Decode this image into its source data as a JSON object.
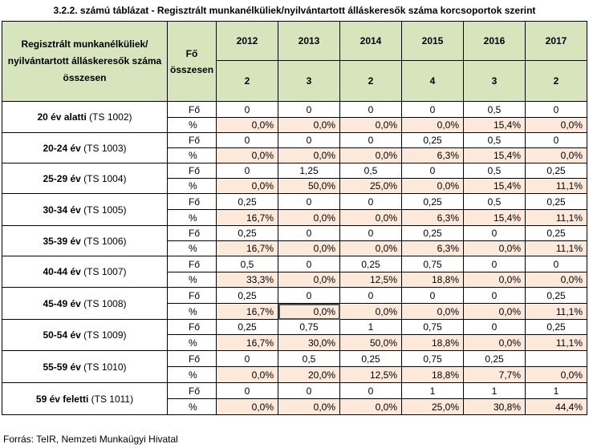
{
  "title": "3.2.2. számú táblázat - Regisztrált munkanélküliek/nyilvántartott álláskeresők száma korcsoportok szerint",
  "header": {
    "category_label": "Regisztrált munkanélküliek/ nyilvántartott álláskeresők száma összesen",
    "unit_label": "Fő összesen",
    "years": [
      "2012",
      "2013",
      "2014",
      "2015",
      "2016",
      "2017"
    ],
    "totals": [
      "2",
      "3",
      "2",
      "4",
      "3",
      "2"
    ]
  },
  "rows": [
    {
      "age": "20 év alatti",
      "code": "(TS 1002)",
      "unit_fo": "Fő",
      "unit_pct": "%",
      "fo": [
        "0",
        "0",
        "0",
        "0",
        "0,5",
        "0"
      ],
      "pct": [
        "0,0%",
        "0,0%",
        "0,0%",
        "0,0%",
        "15,4%",
        "0,0%"
      ]
    },
    {
      "age": "20-24 év",
      "code": "(TS 1003)",
      "unit_fo": "Fő",
      "unit_pct": "%",
      "fo": [
        "0",
        "0",
        "0",
        "0,25",
        "0,5",
        "0"
      ],
      "pct": [
        "0,0%",
        "0,0%",
        "0,0%",
        "6,3%",
        "15,4%",
        "0,0%"
      ]
    },
    {
      "age": "25-29 év",
      "code": "(TS 1004)",
      "unit_fo": "Fő",
      "unit_pct": "%",
      "fo": [
        "0",
        "1,25",
        "0,5",
        "0",
        "0,5",
        "0,25"
      ],
      "pct": [
        "0,0%",
        "50,0%",
        "25,0%",
        "0,0%",
        "15,4%",
        "11,1%"
      ]
    },
    {
      "age": "30-34 év",
      "code": "(TS 1005)",
      "unit_fo": "Fő",
      "unit_pct": "%",
      "fo": [
        "0,25",
        "0",
        "0",
        "0,25",
        "0,5",
        "0,25"
      ],
      "pct": [
        "16,7%",
        "0,0%",
        "0,0%",
        "6,3%",
        "15,4%",
        "11,1%"
      ]
    },
    {
      "age": "35-39 év",
      "code": "(TS 1006)",
      "unit_fo": "Fő",
      "unit_pct": "%",
      "fo": [
        "0,25",
        "0",
        "0",
        "0,25",
        "0",
        "0,25"
      ],
      "pct": [
        "16,7%",
        "0,0%",
        "0,0%",
        "6,3%",
        "0,0%",
        "11,1%"
      ]
    },
    {
      "age": "40-44 év",
      "code": "(TS 1007)",
      "unit_fo": "Fő",
      "unit_pct": "%",
      "fo": [
        "0,5",
        "0",
        "0,25",
        "0,75",
        "0",
        "0"
      ],
      "pct": [
        "33,3%",
        "0,0%",
        "12,5%",
        "18,8%",
        "0,0%",
        "0,0%"
      ]
    },
    {
      "age": "45-49 év",
      "code": "(TS 1008)",
      "unit_fo": "Fő",
      "unit_pct": "%",
      "fo": [
        "0,25",
        "0",
        "0",
        "0",
        "0",
        "0,25"
      ],
      "pct": [
        "16,7%",
        "0,0%",
        "0,0%",
        "0,0%",
        "0,0%",
        "11,1%"
      ]
    },
    {
      "age": "50-54 év",
      "code": "(TS 1009)",
      "unit_fo": "Fő",
      "unit_pct": "%",
      "fo": [
        "0,25",
        "0,75",
        "1",
        "0,75",
        "0",
        "0,25"
      ],
      "pct": [
        "16,7%",
        "30,0%",
        "50,0%",
        "18,8%",
        "0,0%",
        "11,1%"
      ]
    },
    {
      "age": "55-59 év",
      "code": "(TS 1010)",
      "unit_fo": "Fő",
      "unit_pct": "%",
      "fo": [
        "0",
        "0,5",
        "0,25",
        "0,75",
        "0,25",
        ""
      ],
      "pct": [
        "0,0%",
        "20,0%",
        "12,5%",
        "18,8%",
        "7,7%",
        "0,0%"
      ]
    },
    {
      "age": "59 év feletti",
      "code": "(TS 1011)",
      "unit_fo": "Fő",
      "unit_pct": "%",
      "fo": [
        "0",
        "0",
        "0",
        "1",
        "1",
        "1"
      ],
      "pct": [
        "0,0%",
        "0,0%",
        "0,0%",
        "25,0%",
        "30,8%",
        "44,4%"
      ]
    }
  ],
  "source": "Forrás: TeIR, Nemzeti Munkaügyi Hivatal",
  "colors": {
    "header_bg": "#d8e4bc",
    "pct_bg": "#fde9d9"
  }
}
